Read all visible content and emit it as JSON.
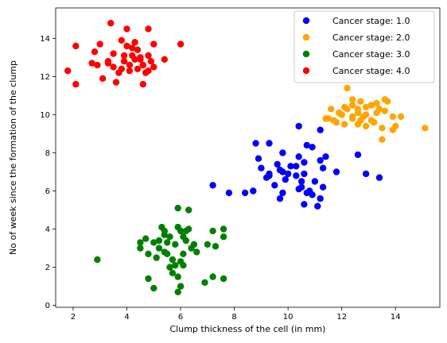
{
  "chart_data": {
    "type": "scatter",
    "title": "",
    "xlabel": "Clump thickness of the cell (in mm)",
    "ylabel": "No of week since the formation of the clump",
    "xlim": [
      1.35,
      15.65
    ],
    "ylim": [
      -0.1,
      15.6
    ],
    "xticks": [
      "2",
      "4",
      "6",
      "8",
      "10",
      "12",
      "14"
    ],
    "xtick_values": [
      2,
      4,
      6,
      8,
      10,
      12,
      14
    ],
    "yticks": [
      "0",
      "2",
      "4",
      "6",
      "8",
      "10",
      "12",
      "14"
    ],
    "ytick_values": [
      0,
      2,
      4,
      6,
      8,
      10,
      12,
      14
    ],
    "grid": false,
    "legend_position": "top-right",
    "series": [
      {
        "name": "Cancer stage: 1.0",
        "color": "#0000ff",
        "points": [
          [
            8.8,
            8.5
          ],
          [
            9.3,
            8.5
          ],
          [
            9.8,
            8.0
          ],
          [
            10.4,
            7.8
          ],
          [
            10.4,
            9.4
          ],
          [
            10.7,
            8.4
          ],
          [
            10.9,
            8.3
          ],
          [
            11.2,
            9.2
          ],
          [
            11.2,
            7.6
          ],
          [
            11.4,
            7.8
          ],
          [
            11.3,
            7.2
          ],
          [
            11.8,
            7.0
          ],
          [
            11.0,
            6.5
          ],
          [
            10.6,
            7.5
          ],
          [
            10.3,
            7.3
          ],
          [
            10.0,
            6.9
          ],
          [
            9.7,
            7.1
          ],
          [
            9.6,
            7.4
          ],
          [
            9.0,
            7.2
          ],
          [
            8.9,
            7.7
          ],
          [
            9.3,
            6.9
          ],
          [
            9.3,
            6.8
          ],
          [
            9.8,
            7.0
          ],
          [
            10.3,
            6.8
          ],
          [
            10.6,
            6.9
          ],
          [
            10.5,
            6.5
          ],
          [
            10.8,
            6.0
          ],
          [
            10.5,
            6.2
          ],
          [
            10.7,
            5.9
          ],
          [
            10.4,
            6.1
          ],
          [
            10.9,
            5.8
          ],
          [
            11.2,
            5.6
          ],
          [
            11.3,
            6.2
          ],
          [
            10.6,
            5.3
          ],
          [
            11.1,
            5.2
          ],
          [
            9.8,
            5.9
          ],
          [
            9.7,
            5.6
          ],
          [
            9.5,
            6.3
          ],
          [
            9.2,
            6.7
          ],
          [
            8.7,
            6.0
          ],
          [
            8.4,
            5.9
          ],
          [
            7.8,
            5.9
          ],
          [
            7.2,
            6.3
          ],
          [
            12.9,
            6.9
          ],
          [
            13.4,
            6.7
          ],
          [
            12.6,
            7.9
          ],
          [
            10.1,
            7.3
          ],
          [
            9.9,
            6.6
          ]
        ]
      },
      {
        "name": "Cancer stage: 2.0",
        "color": "#ffa500",
        "points": [
          [
            12.2,
            11.4
          ],
          [
            12.4,
            10.8
          ],
          [
            12.7,
            10.7
          ],
          [
            13.3,
            10.6
          ],
          [
            13.6,
            10.8
          ],
          [
            13.1,
            10.5
          ],
          [
            12.9,
            10.4
          ],
          [
            12.6,
            10.3
          ],
          [
            12.4,
            10.5
          ],
          [
            12.2,
            10.3
          ],
          [
            12.0,
            10.0
          ],
          [
            11.9,
            10.1
          ],
          [
            11.6,
            10.3
          ],
          [
            11.8,
            9.6
          ],
          [
            11.5,
            9.8
          ],
          [
            11.7,
            9.7
          ],
          [
            12.1,
            9.5
          ],
          [
            12.4,
            9.8
          ],
          [
            12.7,
            9.7
          ],
          [
            12.9,
            9.4
          ],
          [
            13.1,
            9.7
          ],
          [
            13.3,
            10.1
          ],
          [
            13.6,
            10.2
          ],
          [
            13.9,
            9.9
          ],
          [
            14.0,
            9.4
          ],
          [
            13.9,
            9.2
          ],
          [
            13.5,
            9.3
          ],
          [
            13.2,
            9.6
          ],
          [
            12.8,
            9.9
          ],
          [
            12.6,
            10.1
          ],
          [
            12.4,
            9.9
          ],
          [
            12.6,
            9.5
          ],
          [
            12.9,
            10.0
          ],
          [
            13.4,
            10.3
          ],
          [
            13.7,
            10.7
          ],
          [
            14.2,
            9.9
          ],
          [
            15.1,
            9.3
          ],
          [
            13.5,
            8.7
          ],
          [
            11.4,
            9.8
          ],
          [
            12.1,
            10.4
          ]
        ]
      },
      {
        "name": "Cancer stage: 3.0",
        "color": "#008000",
        "points": [
          [
            2.9,
            2.4
          ],
          [
            4.5,
            3.0
          ],
          [
            4.5,
            3.3
          ],
          [
            4.7,
            3.5
          ],
          [
            5.0,
            3.3
          ],
          [
            5.2,
            3.0
          ],
          [
            5.3,
            4.1
          ],
          [
            5.4,
            3.9
          ],
          [
            5.6,
            3.6
          ],
          [
            5.9,
            4.1
          ],
          [
            5.9,
            5.1
          ],
          [
            6.0,
            3.9
          ],
          [
            6.1,
            3.6
          ],
          [
            6.3,
            4.0
          ],
          [
            6.3,
            5.0
          ],
          [
            6.2,
            3.4
          ],
          [
            6.4,
            3.0
          ],
          [
            6.1,
            2.7
          ],
          [
            6.0,
            2.3
          ],
          [
            5.8,
            2.1
          ],
          [
            5.6,
            2.0
          ],
          [
            5.7,
            1.7
          ],
          [
            5.9,
            1.5
          ],
          [
            5.4,
            2.8
          ],
          [
            5.2,
            3.4
          ],
          [
            5.5,
            3.3
          ],
          [
            5.1,
            2.5
          ],
          [
            4.8,
            2.7
          ],
          [
            4.8,
            1.4
          ],
          [
            5.0,
            0.9
          ],
          [
            5.9,
            0.7
          ],
          [
            6.0,
            1.0
          ],
          [
            6.9,
            1.2
          ],
          [
            7.2,
            1.5
          ],
          [
            7.6,
            1.4
          ],
          [
            7.3,
            3.1
          ],
          [
            7.6,
            3.6
          ],
          [
            7.6,
            4.0
          ],
          [
            7.2,
            3.9
          ],
          [
            7.0,
            3.2
          ],
          [
            6.6,
            2.8
          ],
          [
            6.5,
            3.2
          ],
          [
            6.1,
            2.1
          ],
          [
            5.7,
            2.4
          ],
          [
            5.5,
            2.7
          ],
          [
            5.8,
            3.2
          ],
          [
            6.2,
            3.9
          ],
          [
            5.4,
            3.7
          ]
        ]
      },
      {
        "name": "Cancer stage: 4.0",
        "color": "#ff0000",
        "points": [
          [
            1.8,
            12.3
          ],
          [
            2.1,
            11.6
          ],
          [
            2.1,
            13.6
          ],
          [
            2.8,
            13.3
          ],
          [
            2.9,
            12.6
          ],
          [
            3.0,
            13.7
          ],
          [
            3.1,
            11.9
          ],
          [
            3.3,
            12.7
          ],
          [
            3.4,
            14.8
          ],
          [
            3.5,
            13.2
          ],
          [
            3.5,
            12.5
          ],
          [
            3.6,
            11.7
          ],
          [
            3.7,
            12.2
          ],
          [
            3.8,
            13.9
          ],
          [
            3.9,
            13.1
          ],
          [
            4.0,
            14.5
          ],
          [
            4.1,
            12.6
          ],
          [
            4.2,
            13.5
          ],
          [
            4.3,
            13.8
          ],
          [
            4.4,
            13.4
          ],
          [
            4.5,
            12.9
          ],
          [
            4.6,
            12.6
          ],
          [
            4.7,
            12.2
          ],
          [
            4.8,
            13.1
          ],
          [
            4.9,
            12.8
          ],
          [
            5.0,
            12.5
          ],
          [
            4.8,
            14.5
          ],
          [
            4.6,
            11.6
          ],
          [
            5.0,
            13.7
          ],
          [
            5.4,
            12.9
          ],
          [
            6.0,
            13.7
          ],
          [
            3.3,
            12.8
          ],
          [
            3.8,
            12.4
          ],
          [
            4.1,
            12.3
          ],
          [
            4.4,
            12.4
          ],
          [
            4.2,
            13.1
          ],
          [
            4.0,
            13.6
          ],
          [
            4.3,
            12.9
          ],
          [
            4.5,
            13.0
          ],
          [
            4.8,
            12.3
          ],
          [
            3.9,
            12.8
          ],
          [
            2.7,
            12.7
          ]
        ]
      }
    ]
  }
}
